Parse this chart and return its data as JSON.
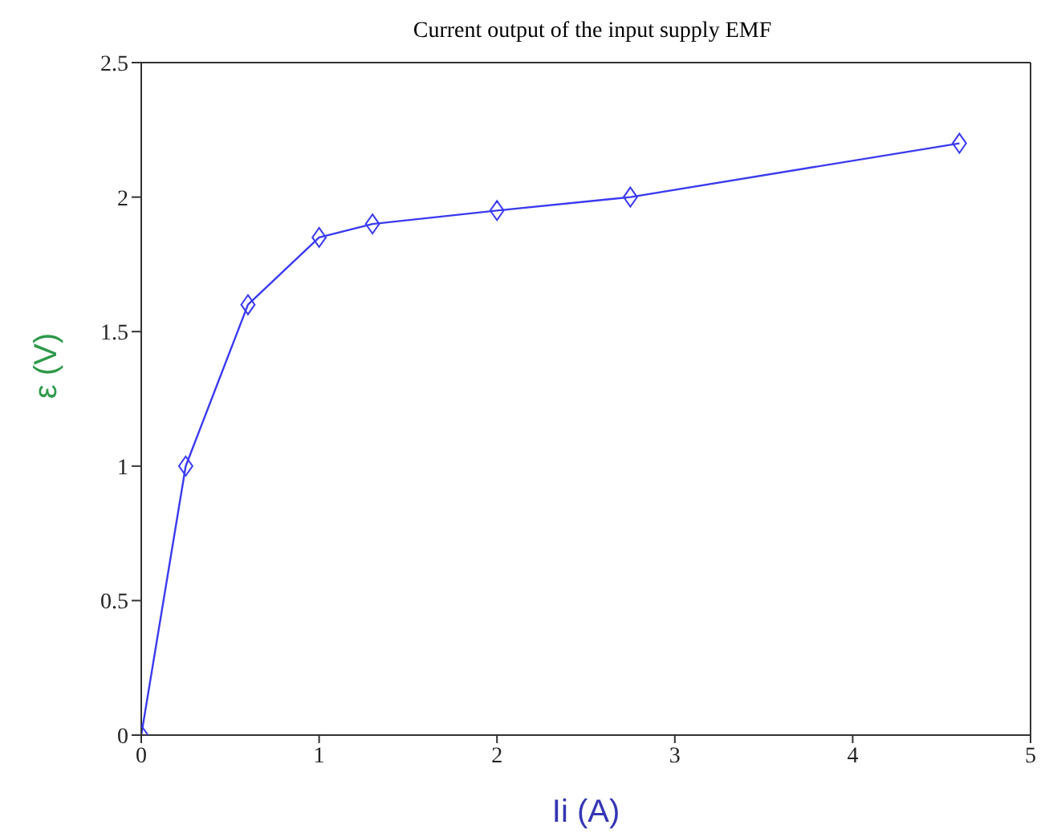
{
  "chart_data": {
    "type": "line",
    "title": "Current output of the input supply EMF",
    "xlabel": "Ii (A)",
    "ylabel": "ε (V)",
    "x": [
      0,
      0.25,
      0.6,
      1,
      1.3,
      2,
      2.75,
      4.6
    ],
    "series": [
      {
        "color": "#3a3af0",
        "values": [
          0,
          1,
          1.6,
          1.85,
          1.9,
          1.95,
          2,
          2.2
        ]
      }
    ],
    "xlim": [
      0,
      5
    ],
    "xticks": [
      0,
      1,
      2,
      3,
      4,
      5
    ],
    "ylim": [
      0,
      2.5
    ],
    "yticks": [
      0,
      0.5,
      1,
      1.5,
      2,
      2.5
    ],
    "grid": false,
    "legend": false,
    "marker": "diamond",
    "line_style": "solid"
  }
}
